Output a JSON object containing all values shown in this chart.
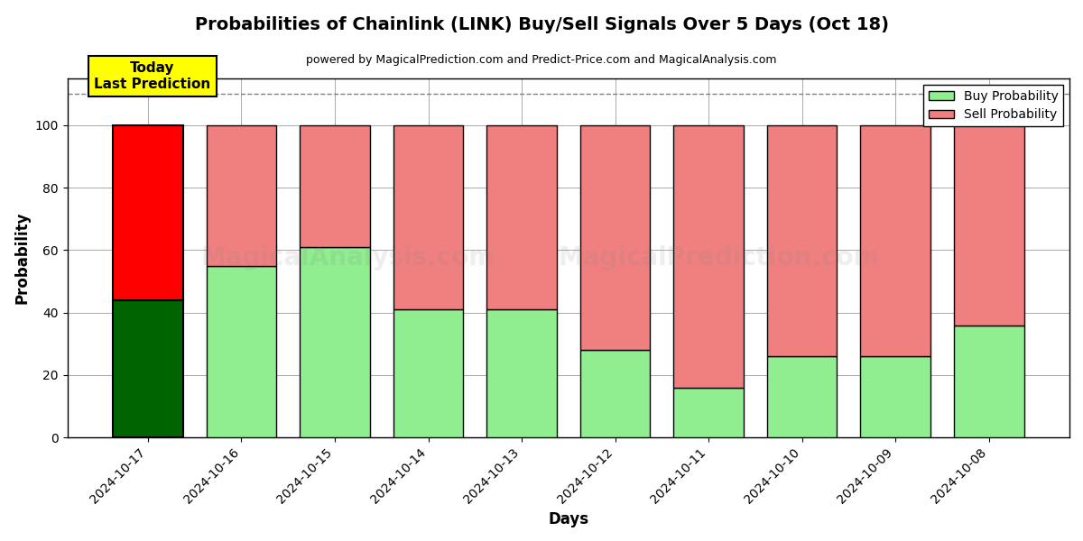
{
  "title": "Probabilities of Chainlink (LINK) Buy/Sell Signals Over 5 Days (Oct 18)",
  "subtitle": "powered by MagicalPrediction.com and Predict-Price.com and MagicalAnalysis.com",
  "xlabel": "Days",
  "ylabel": "Probability",
  "dates": [
    "2024-10-17",
    "2024-10-16",
    "2024-10-15",
    "2024-10-14",
    "2024-10-13",
    "2024-10-12",
    "2024-10-11",
    "2024-10-10",
    "2024-10-09",
    "2024-10-08"
  ],
  "buy_values": [
    44,
    55,
    61,
    41,
    41,
    28,
    16,
    26,
    26,
    36
  ],
  "sell_values": [
    56,
    45,
    39,
    59,
    59,
    72,
    84,
    74,
    74,
    64
  ],
  "buy_color_today": "#006400",
  "sell_color_today": "#FF0000",
  "buy_color_rest": "#90EE90",
  "sell_color_rest": "#F08080",
  "bar_edge_color": "#000000",
  "bar_width": 0.75,
  "ylim": [
    0,
    115
  ],
  "yticks": [
    0,
    20,
    40,
    60,
    80,
    100
  ],
  "dashed_line_y": 110,
  "watermark_text1": "MagicalAnalysis.com",
  "watermark_text2": "MagicalPrediction.com",
  "watermark_alpha": 0.13,
  "legend_buy_label": "Buy Probability",
  "legend_sell_label": "Sell Probability",
  "today_label": "Today\nLast Prediction",
  "today_box_color": "#FFFF00",
  "grid_color": "#aaaaaa",
  "background_color": "#ffffff"
}
